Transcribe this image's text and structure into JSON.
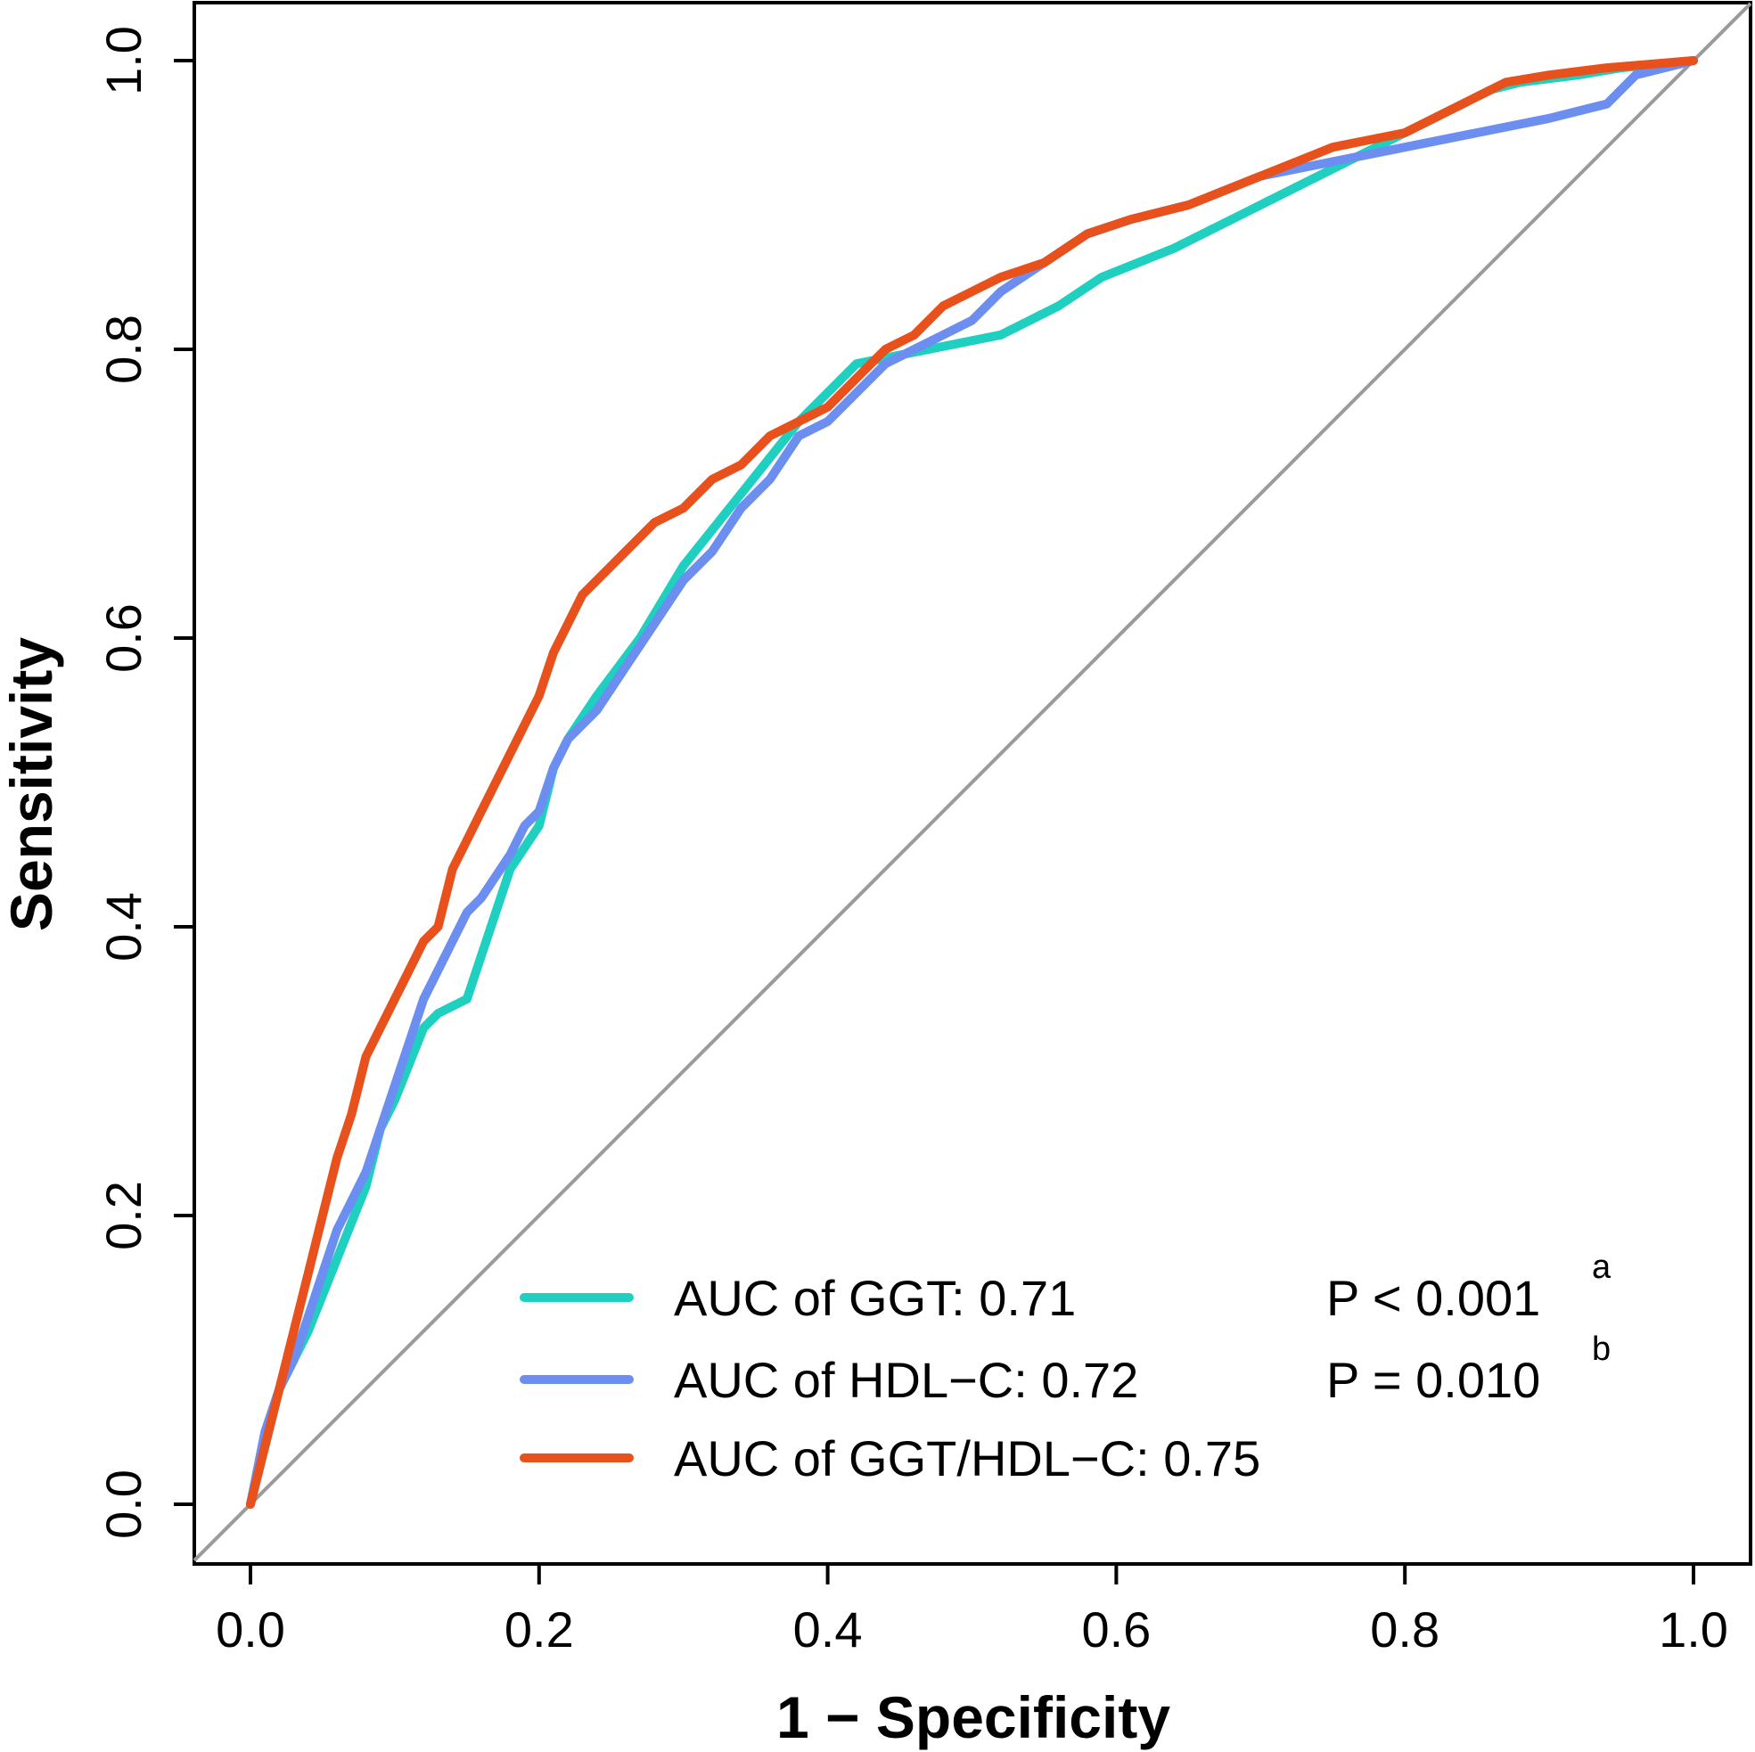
{
  "chart_data": {
    "type": "line",
    "title": "",
    "xlabel": "1 − Specificity",
    "ylabel": "Sensitivity",
    "xlim": [
      0,
      1
    ],
    "ylim": [
      0,
      1
    ],
    "x_ticks": [
      "0.0",
      "0.2",
      "0.4",
      "0.6",
      "0.8",
      "1.0"
    ],
    "y_ticks": [
      "0.0",
      "0.2",
      "0.4",
      "0.6",
      "0.8",
      "1.0"
    ],
    "reference_line": {
      "from": [
        0,
        0
      ],
      "to": [
        1,
        1
      ],
      "color": "#9b9b9b"
    },
    "legend_position": "bottom-right",
    "series": [
      {
        "name": "GGT",
        "label": "AUC of GGT: 0.71",
        "p_value": "P < 0.001",
        "superscript": "a",
        "color": "#1fcfc0",
        "x": [
          0,
          0.01,
          0.02,
          0.04,
          0.06,
          0.08,
          0.09,
          0.1,
          0.12,
          0.13,
          0.15,
          0.16,
          0.18,
          0.2,
          0.21,
          0.22,
          0.24,
          0.27,
          0.3,
          0.34,
          0.38,
          0.42,
          0.47,
          0.52,
          0.56,
          0.59,
          0.64,
          0.7,
          0.76,
          0.82,
          0.86,
          0.88,
          0.92,
          0.95,
          1.0
        ],
        "y": [
          0,
          0.04,
          0.08,
          0.12,
          0.17,
          0.22,
          0.26,
          0.28,
          0.33,
          0.34,
          0.35,
          0.38,
          0.44,
          0.47,
          0.51,
          0.53,
          0.56,
          0.6,
          0.65,
          0.7,
          0.75,
          0.79,
          0.8,
          0.81,
          0.83,
          0.85,
          0.87,
          0.9,
          0.93,
          0.96,
          0.98,
          0.985,
          0.99,
          0.995,
          1.0
        ]
      },
      {
        "name": "HDL-C",
        "label": "AUC of HDL−C: 0.72",
        "p_value": "P = 0.010",
        "superscript": "b",
        "color": "#6b8ef0",
        "x": [
          0,
          0.01,
          0.02,
          0.03,
          0.04,
          0.05,
          0.06,
          0.07,
          0.08,
          0.09,
          0.1,
          0.11,
          0.12,
          0.13,
          0.14,
          0.15,
          0.16,
          0.18,
          0.19,
          0.2,
          0.21,
          0.22,
          0.24,
          0.26,
          0.28,
          0.3,
          0.32,
          0.34,
          0.36,
          0.38,
          0.4,
          0.42,
          0.44,
          0.46,
          0.48,
          0.5,
          0.52,
          0.55,
          0.58,
          0.61,
          0.65,
          0.7,
          0.75,
          0.8,
          0.85,
          0.9,
          0.94,
          0.96,
          1.0
        ],
        "y": [
          0,
          0.05,
          0.08,
          0.1,
          0.13,
          0.16,
          0.19,
          0.21,
          0.23,
          0.26,
          0.29,
          0.32,
          0.35,
          0.37,
          0.39,
          0.41,
          0.42,
          0.45,
          0.47,
          0.48,
          0.51,
          0.53,
          0.55,
          0.58,
          0.61,
          0.64,
          0.66,
          0.69,
          0.71,
          0.74,
          0.75,
          0.77,
          0.79,
          0.8,
          0.81,
          0.82,
          0.84,
          0.86,
          0.88,
          0.89,
          0.9,
          0.92,
          0.93,
          0.94,
          0.95,
          0.96,
          0.97,
          0.99,
          1.0
        ]
      },
      {
        "name": "GGT/HDL-C",
        "label": "AUC of GGT/HDL−C: 0.75",
        "p_value": "",
        "superscript": "",
        "color": "#e8501c",
        "x": [
          0,
          0.01,
          0.02,
          0.03,
          0.04,
          0.05,
          0.06,
          0.07,
          0.08,
          0.09,
          0.1,
          0.11,
          0.12,
          0.13,
          0.14,
          0.15,
          0.16,
          0.17,
          0.18,
          0.19,
          0.2,
          0.21,
          0.22,
          0.23,
          0.24,
          0.26,
          0.28,
          0.3,
          0.32,
          0.34,
          0.36,
          0.38,
          0.4,
          0.42,
          0.44,
          0.46,
          0.48,
          0.5,
          0.52,
          0.55,
          0.58,
          0.61,
          0.65,
          0.7,
          0.75,
          0.8,
          0.84,
          0.87,
          0.9,
          0.94,
          1.0
        ],
        "y": [
          0,
          0.04,
          0.08,
          0.12,
          0.16,
          0.2,
          0.24,
          0.27,
          0.31,
          0.33,
          0.35,
          0.37,
          0.39,
          0.4,
          0.44,
          0.46,
          0.48,
          0.5,
          0.52,
          0.54,
          0.56,
          0.59,
          0.61,
          0.63,
          0.64,
          0.66,
          0.68,
          0.69,
          0.71,
          0.72,
          0.74,
          0.75,
          0.76,
          0.78,
          0.8,
          0.81,
          0.83,
          0.84,
          0.85,
          0.86,
          0.88,
          0.89,
          0.9,
          0.92,
          0.94,
          0.95,
          0.97,
          0.985,
          0.99,
          0.995,
          1.0
        ]
      }
    ]
  }
}
